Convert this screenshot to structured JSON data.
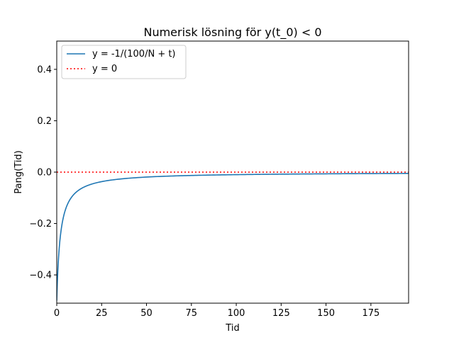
{
  "chart_data": {
    "type": "line",
    "title": "Numerisk lösning för y(t_0) < 0",
    "xlabel": "Tid",
    "ylabel": "Pang(Tid)",
    "xlim": [
      0,
      196
    ],
    "ylim": [
      -0.51,
      0.51
    ],
    "xticks": [
      0,
      25,
      50,
      75,
      100,
      125,
      150,
      175
    ],
    "xtick_labels": [
      "0",
      "25",
      "50",
      "75",
      "100",
      "125",
      "150",
      "175"
    ],
    "yticks": [
      -0.4,
      -0.2,
      0.0,
      0.2,
      0.4
    ],
    "ytick_labels": [
      "−0.4",
      "−0.2",
      "0.0",
      "0.2",
      "0.4"
    ],
    "grid": false,
    "legend_position": "upper-left",
    "series": [
      {
        "name": "y = -1/(100/N + t)",
        "color": "#1f77b4",
        "style": "solid",
        "x": [
          0,
          0.5,
          1,
          1.5,
          2,
          3,
          4,
          5,
          7,
          10,
          15,
          20,
          30,
          40,
          50,
          75,
          100,
          125,
          150,
          175,
          196
        ],
        "y": [
          -0.5,
          -0.4,
          -0.333,
          -0.286,
          -0.25,
          -0.2,
          -0.167,
          -0.143,
          -0.111,
          -0.0833,
          -0.0588,
          -0.0455,
          -0.0313,
          -0.0238,
          -0.0192,
          -0.013,
          -0.0098,
          -0.0079,
          -0.0066,
          -0.0057,
          -0.0051
        ]
      },
      {
        "name": "y = 0",
        "color": "#ff0000",
        "style": "dotted",
        "x": [
          0,
          196
        ],
        "y": [
          0,
          0
        ]
      }
    ]
  }
}
